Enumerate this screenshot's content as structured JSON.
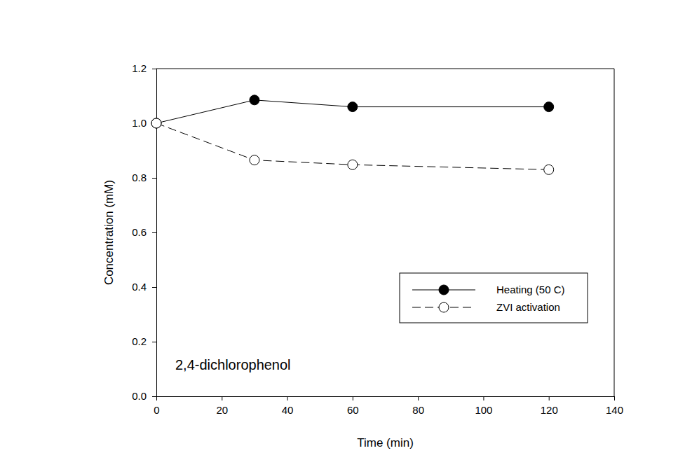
{
  "chart_data": {
    "type": "line",
    "xlabel": "Time (min)",
    "ylabel": "Concentration (mM)",
    "annotation": "2,4-dichlorophenol",
    "x": [
      0,
      30,
      60,
      120
    ],
    "series": [
      {
        "name": "Heating (50 C)",
        "color": "#000000",
        "marker": "filled-circle",
        "line_style": "solid",
        "values": [
          1.0,
          1.085,
          1.06,
          1.06
        ]
      },
      {
        "name": "ZVI activation",
        "color": "#000000",
        "marker": "open-circle",
        "line_style": "dashed",
        "values": [
          1.0,
          0.865,
          0.848,
          0.83
        ]
      }
    ],
    "xlim": [
      0,
      140
    ],
    "xticks": [
      0,
      20,
      40,
      60,
      80,
      100,
      120,
      140
    ],
    "ylim": [
      0,
      1.2
    ],
    "yticks": [
      {
        "value": 0,
        "label": "0.0"
      },
      0.2,
      0.4,
      0.6,
      0.8,
      {
        "value": 1,
        "label": "1.0"
      },
      1.2
    ],
    "legend": "lower right",
    "grid": false
  }
}
